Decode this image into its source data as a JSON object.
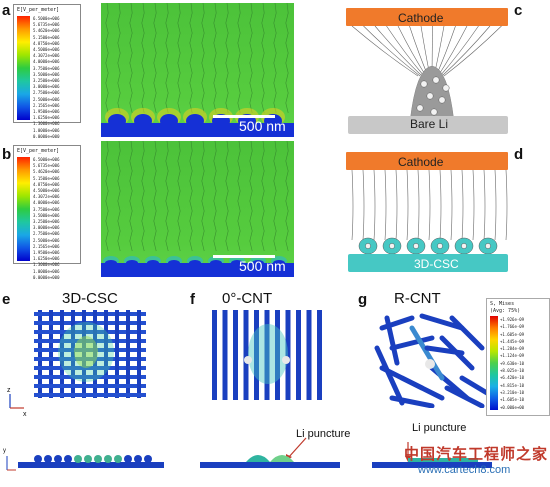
{
  "panels": {
    "a": {
      "label": "a",
      "scalebar": "500 nm"
    },
    "b": {
      "label": "b",
      "scalebar": "500 nm"
    },
    "c": {
      "label": "c",
      "top": "Cathode",
      "bottom": "Bare Li"
    },
    "d": {
      "label": "d",
      "top": "Cathode",
      "bottom": "3D-CSC"
    },
    "e": {
      "label": "e",
      "title": "3D-CSC"
    },
    "f": {
      "label": "f",
      "title": "0°-CNT",
      "annotation": "Li puncture"
    },
    "g": {
      "label": "g",
      "title": "R-CNT",
      "annotation": "Li puncture"
    }
  },
  "field_legend": {
    "title": "E[V_per_meter]",
    "values": [
      "6.5000e+006",
      "5.6735e+006",
      "5.4620e+006",
      "5.1500e+006",
      "4.8750e+006",
      "4.5000e+006",
      "4.3072e+006",
      "4.0000e+006",
      "3.7500e+006",
      "3.5000e+006",
      "3.2500e+006",
      "3.0000e+006",
      "2.7500e+006",
      "2.5000e+006",
      "2.1565e+006",
      "1.9500e+006",
      "1.6250e+006",
      "1.3000e+006",
      "1.0000e+006",
      "0.0000e+000"
    ]
  },
  "field_legend_b": {
    "title": "E[V_per_meter]",
    "values": [
      "6.5000e+006",
      "5.6735e+006",
      "5.4620e+006",
      "5.1500e+006",
      "4.8750e+006",
      "4.5000e+006",
      "4.3072e+006",
      "4.0000e+006",
      "3.7500e+006",
      "3.5000e+006",
      "3.2500e+006",
      "3.0000e+006",
      "2.7500e+006",
      "2.5000e+006",
      "2.1565e+006",
      "1.9500e+006",
      "1.6250e+006",
      "1.3000e+006",
      "1.0000e+006",
      "0.0000e+000"
    ]
  },
  "stress_legend": {
    "title": "S, Mises",
    "subtitle": "(Avg: 75%)",
    "values": [
      "+1.926e-09",
      "+1.766e-09",
      "+1.605e-09",
      "+1.445e-09",
      "+1.284e-09",
      "+1.124e-09",
      "+9.630e-10",
      "+8.025e-10",
      "+6.420e-10",
      "+4.815e-10",
      "+3.210e-10",
      "+1.605e-10",
      "+0.000e+00"
    ]
  },
  "axes": {
    "x": "x",
    "y": "y",
    "z": "z"
  },
  "watermark": {
    "cn": "中国汽车工程师之家",
    "url": "www.cartech8.com"
  },
  "colors": {
    "cathode": "#f07a2b",
    "bare_li": "#c8c8c8",
    "csc": "#46c8c4",
    "field": "#4ec83c",
    "fiber": "#1a3fbf"
  }
}
